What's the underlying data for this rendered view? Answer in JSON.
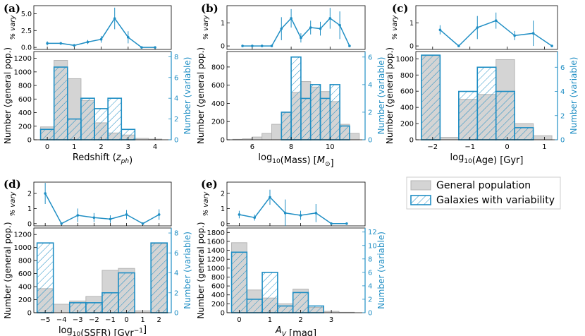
{
  "colors": {
    "general_fill": "#d4d4d4",
    "general_edge": "#b5b5b5",
    "variable": "#1f8ec4",
    "axis": "#000000"
  },
  "legend": {
    "general": "General population",
    "variable": "Galaxies with variability"
  },
  "chart_data": [
    {
      "id": "a",
      "panel_label": "(a)",
      "type": "bar",
      "xlabel": "Redshift ($z_{ph}$)",
      "xlabel_parts": [
        [
          "Redshift (",
          "n"
        ],
        [
          "z",
          "i"
        ],
        [
          "ph",
          "sub_i"
        ],
        [
          ")",
          "n"
        ]
      ],
      "ylabel_left": "Number (general pop.)",
      "ylabel_right": "Number (variable)",
      "ylabel_top": "% vary",
      "xlim": [
        -0.5,
        4.6
      ],
      "ylim_left": [
        0,
        1300
      ],
      "ylim_right": [
        0,
        8.5
      ],
      "ylim_top": [
        -0.3,
        6.2
      ],
      "xticks": [
        0,
        1,
        2,
        3,
        4
      ],
      "xtick_labels": [
        "0",
        "1",
        "2",
        "3",
        "4"
      ],
      "yticks_left": [
        0,
        200,
        400,
        600,
        800,
        1000,
        1200
      ],
      "yticks_right": [
        0,
        2,
        4,
        6,
        8
      ],
      "yticks_top": [
        0,
        2.5,
        5
      ],
      "ytick_labels_top": [
        "0.0",
        "2.5",
        "5.0"
      ],
      "bin_edges": [
        -0.25,
        0.25,
        0.75,
        1.25,
        1.75,
        2.25,
        2.75,
        3.25,
        3.75,
        4.25
      ],
      "general": [
        190,
        1170,
        900,
        580,
        250,
        100,
        70,
        20,
        10
      ],
      "variable": [
        1,
        7,
        2,
        4,
        3,
        4,
        1,
        0,
        0
      ],
      "vary_x": [
        0,
        0.5,
        1,
        1.5,
        2,
        2.5,
        3,
        3.5,
        4
      ],
      "vary": [
        0.6,
        0.6,
        0.3,
        0.8,
        1.2,
        4.3,
        1.5,
        0.0,
        0.0
      ],
      "vary_err": [
        0.3,
        0.2,
        0.2,
        0.3,
        0.5,
        1.6,
        0.9,
        0,
        0
      ]
    },
    {
      "id": "b",
      "panel_label": "(b)",
      "type": "bar",
      "xlabel": "log10(Mass) [M_sun]",
      "xlabel_parts": [
        [
          "log",
          "n"
        ],
        [
          "10",
          "sub"
        ],
        [
          "(Mass) [",
          "n"
        ],
        [
          "M",
          "i"
        ],
        [
          "⊙",
          "sub"
        ],
        [
          "]",
          "n"
        ]
      ],
      "ylabel_left": "Number (general pop.)",
      "ylabel_right": "Number (variable)",
      "ylabel_top": "% vary",
      "xlim": [
        4.7,
        11.8
      ],
      "ylim_left": [
        0,
        970
      ],
      "ylim_right": [
        0,
        6.4
      ],
      "ylim_top": [
        -0.15,
        1.75
      ],
      "xticks": [
        6,
        8,
        10
      ],
      "xtick_labels": [
        "6",
        "8",
        "10"
      ],
      "yticks_left": [
        0,
        200,
        400,
        600,
        800
      ],
      "yticks_right": [
        0,
        2,
        4,
        6
      ],
      "yticks_top": [
        0,
        1
      ],
      "ytick_labels_top": [
        "0",
        "1"
      ],
      "bin_edges": [
        5.0,
        5.5,
        6.0,
        6.5,
        7.0,
        7.5,
        8.0,
        8.5,
        9.0,
        9.5,
        10.0,
        10.5,
        11.0,
        11.5
      ],
      "general": [
        5,
        10,
        30,
        70,
        170,
        300,
        520,
        640,
        580,
        530,
        420,
        170,
        70
      ],
      "variable": [
        0,
        0,
        0,
        0,
        0,
        2,
        6,
        3,
        4,
        3,
        4,
        1,
        0
      ],
      "vary_x": [
        5.5,
        6.0,
        6.5,
        7.0,
        7.5,
        8.0,
        8.5,
        9.0,
        9.5,
        10.0,
        10.5,
        11.0
      ],
      "vary": [
        0.0,
        0.0,
        0.0,
        0.0,
        0.75,
        1.2,
        0.35,
        0.8,
        0.75,
        1.2,
        0.9,
        0.0
      ],
      "vary_err": [
        0,
        0,
        0,
        0,
        0.5,
        0.4,
        0.2,
        0.3,
        0.3,
        0.45,
        0.6,
        0
      ]
    },
    {
      "id": "c",
      "panel_label": "(c)",
      "type": "bar",
      "xlabel": "log10(Age) [Gyr]",
      "xlabel_parts": [
        [
          "log",
          "n"
        ],
        [
          "10",
          "sub"
        ],
        [
          "(Age) [Gyr]",
          "n"
        ]
      ],
      "ylabel_left": "Number (general pop.)",
      "ylabel_right": "Number (variable)",
      "ylabel_top": "% vary",
      "xlim": [
        -2.45,
        1.35
      ],
      "ylim_left": [
        0,
        1090
      ],
      "ylim_right": [
        0,
        7.3
      ],
      "ylim_top": [
        -0.15,
        1.75
      ],
      "xticks": [
        -2,
        -1,
        0,
        1
      ],
      "xtick_labels": [
        "−2",
        "−1",
        "0",
        "1"
      ],
      "yticks_left": [
        0,
        200,
        400,
        600,
        800,
        1000
      ],
      "yticks_right": [
        0,
        2,
        4,
        6
      ],
      "yticks_top": [
        0,
        1
      ],
      "ytick_labels_top": [
        "0",
        "1"
      ],
      "bin_edges": [
        -2.3,
        -1.8,
        -1.3,
        -0.8,
        -0.3,
        0.2,
        0.7,
        1.2
      ],
      "general": [
        1040,
        30,
        500,
        560,
        990,
        200,
        50
      ],
      "variable": [
        7,
        0,
        4,
        6,
        4,
        1,
        0
      ],
      "vary_x": [
        -1.8,
        -1.3,
        -0.8,
        -0.3,
        0.2,
        0.7,
        1.2
      ],
      "vary": [
        0.7,
        0.0,
        0.8,
        1.1,
        0.45,
        0.55,
        0.0
      ],
      "vary_err": [
        0.2,
        0,
        0.5,
        0.35,
        0.2,
        0.55,
        0
      ]
    },
    {
      "id": "d",
      "panel_label": "(d)",
      "type": "bar",
      "xlabel": "log10(SSFR) [Gyr^-1]",
      "xlabel_parts": [
        [
          "log",
          "n"
        ],
        [
          "10",
          "sub"
        ],
        [
          "(SSFR) [Gyr",
          "n"
        ],
        [
          "−1",
          "sup"
        ],
        [
          "]",
          "n"
        ]
      ],
      "ylabel_left": "Number (general pop.)",
      "ylabel_right": "Number (variable)",
      "ylabel_top": "% vary",
      "xlim": [
        -5.7,
        2.75
      ],
      "ylim_left": [
        0,
        1300
      ],
      "ylim_right": [
        0,
        8.5
      ],
      "ylim_top": [
        -0.15,
        2.75
      ],
      "xticks": [
        -5,
        -4,
        -3,
        -2,
        -1,
        0,
        1,
        2
      ],
      "xtick_labels": [
        "−5",
        "−4",
        "−3",
        "−2",
        "−1",
        "0",
        "1",
        "2"
      ],
      "yticks_left": [
        0,
        200,
        400,
        600,
        800,
        1000,
        1200
      ],
      "yticks_right": [
        0,
        2,
        4,
        6,
        8
      ],
      "yticks_top": [
        0,
        1,
        2
      ],
      "ytick_labels_top": [
        "0",
        "1",
        "2"
      ],
      "bin_edges": [
        -5.5,
        -4.5,
        -3.5,
        -2.5,
        -1.5,
        -0.5,
        0.5,
        1.5,
        2.5
      ],
      "general": [
        370,
        130,
        180,
        250,
        650,
        680,
        30,
        1060
      ],
      "variable": [
        7,
        0,
        1,
        1,
        2,
        4,
        0,
        7
      ],
      "vary_x": [
        -5,
        -4,
        -3,
        -2,
        -1,
        0,
        1,
        2
      ],
      "vary": [
        2.0,
        0.0,
        0.55,
        0.4,
        0.3,
        0.6,
        0.0,
        0.6
      ],
      "vary_err": [
        0.7,
        0,
        0.45,
        0.3,
        0.25,
        0.3,
        0,
        0.35
      ]
    },
    {
      "id": "e",
      "panel_label": "(e)",
      "type": "bar",
      "xlabel": "A_V [mag]",
      "xlabel_parts": [
        [
          "A",
          "i"
        ],
        [
          "V",
          "sub_i"
        ],
        [
          " [mag]",
          "n"
        ]
      ],
      "ylabel_left": "Number (general pop.)",
      "ylabel_right": "Number (variable)",
      "ylabel_top": "% vary",
      "xlim": [
        -0.4,
        4.1
      ],
      "ylim_left": [
        0,
        1900
      ],
      "ylim_right": [
        0,
        12.6
      ],
      "ylim_top": [
        -0.15,
        2.75
      ],
      "xticks": [
        0,
        1,
        2,
        3
      ],
      "xtick_labels": [
        "0",
        "1",
        "2",
        "3"
      ],
      "yticks_left": [
        0,
        200,
        400,
        600,
        800,
        1000,
        1200,
        1400,
        1600,
        1800
      ],
      "yticks_right": [
        0,
        2,
        4,
        6,
        8,
        10,
        12
      ],
      "yticks_top": [
        0,
        1,
        2
      ],
      "ytick_labels_top": [
        "0",
        "1",
        "2"
      ],
      "bin_edges": [
        -0.25,
        0.25,
        0.75,
        1.25,
        1.75,
        2.25,
        2.75,
        3.25,
        3.75
      ],
      "general": [
        1570,
        510,
        330,
        200,
        530,
        120,
        30,
        10
      ],
      "variable": [
        9,
        2,
        6,
        1,
        3,
        1,
        0,
        0
      ],
      "vary_x": [
        0,
        0.5,
        1,
        1.5,
        2,
        2.5,
        3,
        3.5
      ],
      "vary": [
        0.6,
        0.4,
        1.75,
        0.7,
        0.55,
        0.7,
        0.0,
        0.0
      ],
      "vary_err": [
        0.25,
        0.2,
        0.5,
        0.9,
        0.3,
        0.6,
        0,
        0
      ]
    }
  ]
}
